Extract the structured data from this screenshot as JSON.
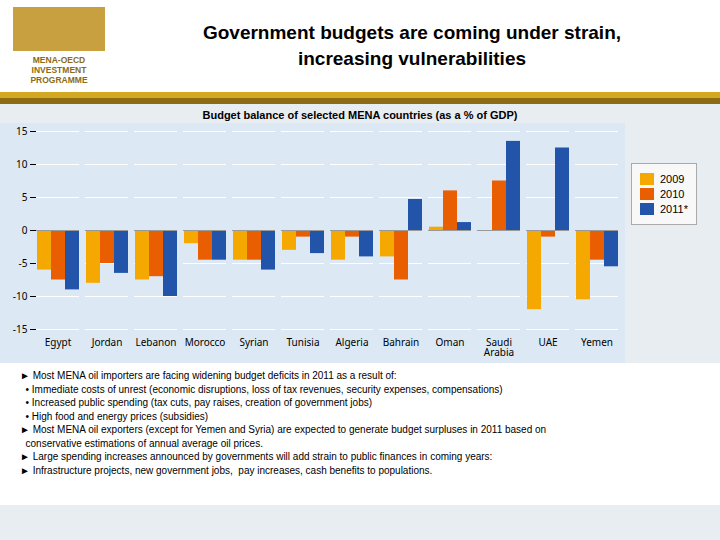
{
  "chart_data": {
    "type": "bar",
    "title": "Government budgets are coming under strain,\nincreasing vulnerabilities",
    "subtitle": "Budget balance of selected MENA countries (as a % of GDP)",
    "logo_text": [
      "MENA-OECD",
      "INVESTMENT",
      "PROGRAMME"
    ],
    "categories": [
      "Egypt",
      "Jordan",
      "Lebanon",
      "Morocco",
      "Syrian",
      "Tunisia",
      "Algeria",
      "Bahrain",
      "Oman",
      "Saudi\nArabia",
      "UAE",
      "Yemen"
    ],
    "series": [
      {
        "name": "2009",
        "color": "#F5A800",
        "values": [
          -6.0,
          -8.0,
          -7.5,
          -2.0,
          -4.5,
          -3.0,
          -4.5,
          -4.0,
          0.5,
          0.0,
          -12.0,
          -10.5
        ]
      },
      {
        "name": "2010",
        "color": "#E85E00",
        "values": [
          -7.5,
          -5.0,
          -7.0,
          -4.5,
          -4.5,
          -1.0,
          -1.0,
          -7.5,
          6.0,
          7.5,
          -1.0,
          -4.5
        ]
      },
      {
        "name": "2011*",
        "color": "#2255AA",
        "values": [
          -9.0,
          -6.5,
          -10.0,
          -4.5,
          -6.0,
          -3.5,
          -4.0,
          4.7,
          1.2,
          13.5,
          12.5,
          -5.5
        ]
      }
    ],
    "ylim": [
      -15,
      15
    ],
    "yticks": [
      -15,
      -10,
      -5,
      0,
      5,
      10,
      15
    ],
    "grid": true,
    "legend": "right",
    "annotations": [
      "► Most MENA oil importers are facing widening budget deficits in 2011 as a result of:",
      "  • Immediate costs of unrest (economic disruptions, loss of tax revenues, security expenses, compensations)",
      "  • Increased public spending (tax cuts, pay raises, creation of government jobs)",
      "  • High food and energy prices (subsidies)",
      "► Most MENA oil exporters (except for Yemen and Syria) are expected to generate budget surpluses in 2011 based on",
      "  conservative estimations of annual average oil prices.",
      "► Large spending increases announced by governments will add strain to public finances in coming years:",
      "► Infrastructure projects, new government jobs,  pay increases, cash benefits to populations."
    ]
  }
}
